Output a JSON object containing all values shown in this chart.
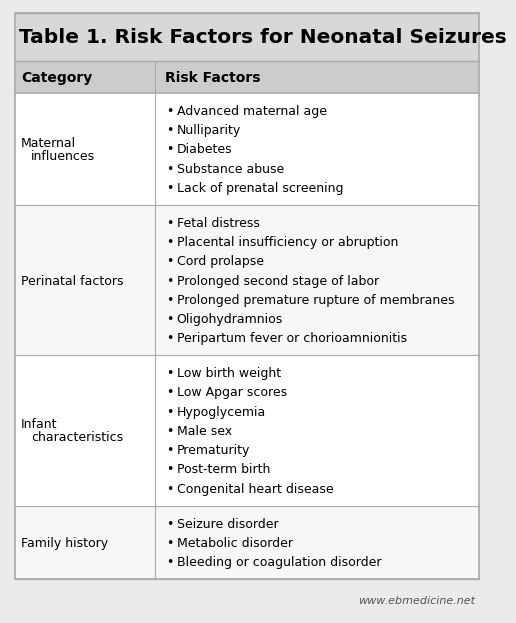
{
  "title": "Table 1. Risk Factors for Neonatal Seizures",
  "col1_header": "Category",
  "col2_header": "Risk Factors",
  "rows": [
    {
      "category": "Maternal\n  influences",
      "factors": [
        "Advanced maternal age",
        "Nulliparity",
        "Diabetes",
        "Substance abuse",
        "Lack of prenatal screening"
      ]
    },
    {
      "category": "Perinatal factors",
      "factors": [
        "Fetal distress",
        "Placental insufficiency or abruption",
        "Cord prolapse",
        "Prolonged second stage of labor",
        "Prolonged premature rupture of membranes",
        "Oligohydramnios",
        "Peripartum fever or chorioamnionitis"
      ]
    },
    {
      "category": "Infant\n  characteristics",
      "factors": [
        "Low birth weight",
        "Low Apgar scores",
        "Hypoglycemia",
        "Male sex",
        "Prematurity",
        "Post-term birth",
        "Congenital heart disease"
      ]
    },
    {
      "category": "Family history",
      "factors": [
        "Seizure disorder",
        "Metabolic disorder",
        "Bleeding or coagulation disorder"
      ]
    }
  ],
  "watermark": "www.ebmedicine.net",
  "bg_color": "#ebebeb",
  "row_even_bg": "#ffffff",
  "row_odd_bg": "#f7f7f7",
  "header_bg": "#cccccc",
  "title_bg": "#d8d8d8",
  "border_color": "#aaaaaa",
  "text_color": "#000000",
  "title_fontsize": 14.5,
  "header_fontsize": 10,
  "body_fontsize": 9,
  "watermark_fontsize": 8,
  "col_split": 0.305
}
